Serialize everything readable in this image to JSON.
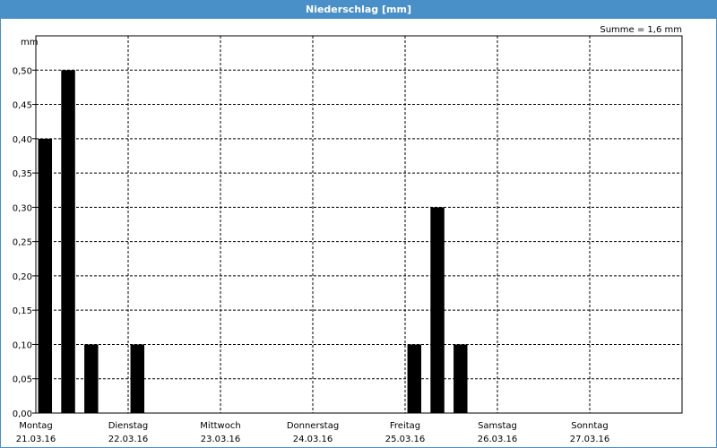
{
  "window": {
    "title": "Niederschlag [mm]"
  },
  "summary": "Summe = 1,6 mm",
  "chart_data": {
    "type": "bar",
    "ylabel": "mm",
    "ylim": [
      0,
      0.55
    ],
    "yticks": [
      0,
      0.05,
      0.1,
      0.15,
      0.2,
      0.25,
      0.3,
      0.35,
      0.4,
      0.45,
      0.5
    ],
    "ytick_labels": [
      "0,00",
      "0,05",
      "0,10",
      "0,15",
      "0,20",
      "0,25",
      "0,30",
      "0,35",
      "0,40",
      "0,45",
      "0,50"
    ],
    "days": [
      {
        "name": "Montag",
        "date": "21.03.16"
      },
      {
        "name": "Dienstag",
        "date": "22.03.16"
      },
      {
        "name": "Mittwoch",
        "date": "23.03.16"
      },
      {
        "name": "Donnerstag",
        "date": "24.03.16"
      },
      {
        "name": "Freitag",
        "date": "25.03.16"
      },
      {
        "name": "Samstag",
        "date": "26.03.16"
      },
      {
        "name": "Sonntag",
        "date": "27.03.16"
      }
    ],
    "bin_hours": 6,
    "values": [
      0.4,
      0.5,
      0.1,
      0,
      0.1,
      0,
      0,
      0,
      0,
      0,
      0,
      0,
      0,
      0,
      0,
      0,
      0.1,
      0.3,
      0.1,
      0,
      0,
      0,
      0,
      0,
      0,
      0,
      0,
      0
    ],
    "bar_color": "#000000",
    "grid": true,
    "grid_style": "dashed"
  }
}
